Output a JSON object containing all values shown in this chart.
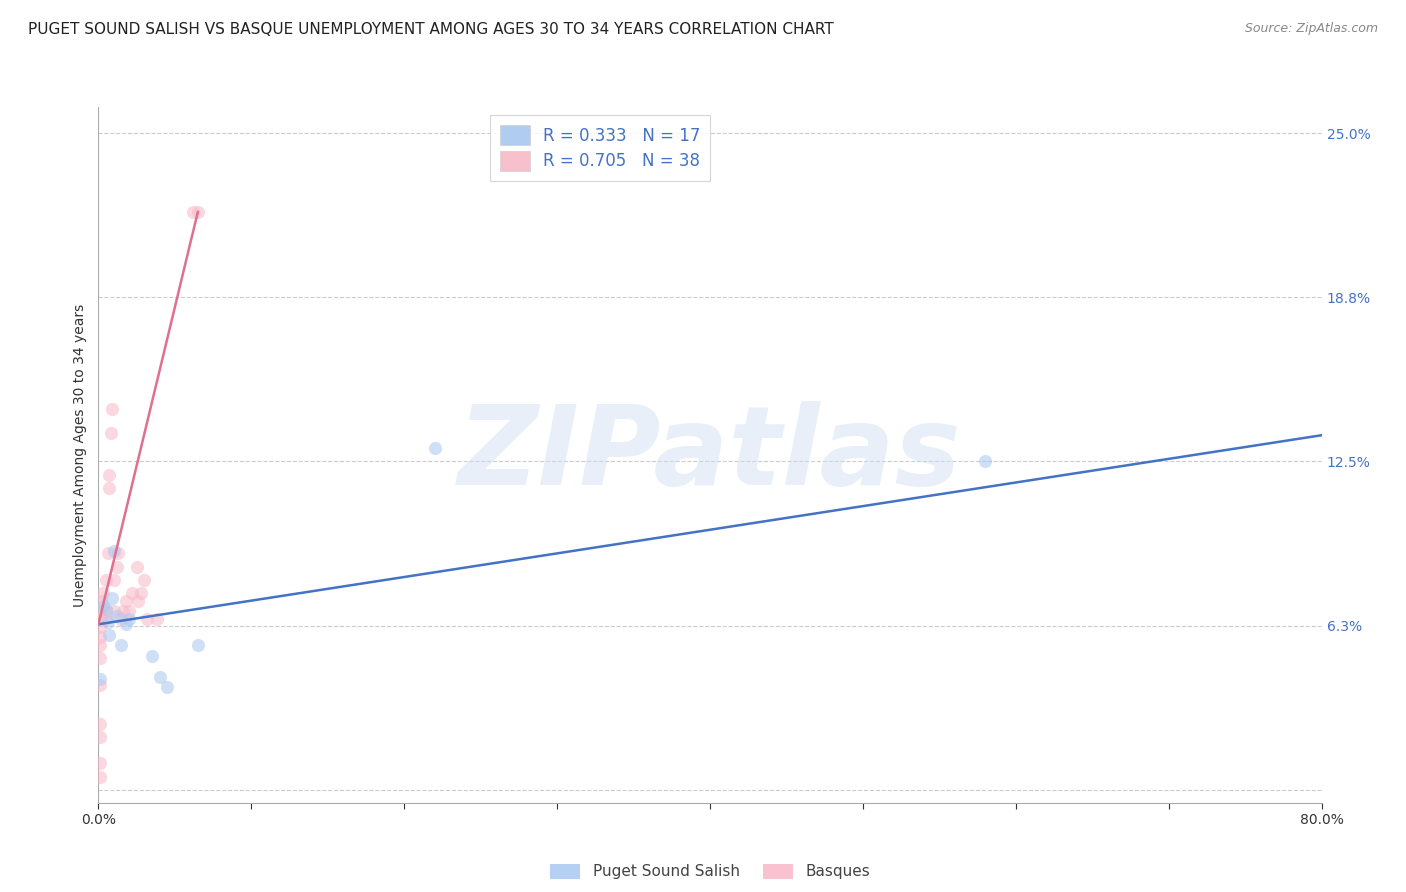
{
  "title": "PUGET SOUND SALISH VS BASQUE UNEMPLOYMENT AMONG AGES 30 TO 34 YEARS CORRELATION CHART",
  "source": "Source: ZipAtlas.com",
  "ylabel": "Unemployment Among Ages 30 to 34 years",
  "xlim": [
    0.0,
    0.8
  ],
  "ylim": [
    -0.005,
    0.26
  ],
  "yticks": [
    0.0,
    0.0625,
    0.125,
    0.1875,
    0.25
  ],
  "ytick_labels": [
    "",
    "6.3%",
    "12.5%",
    "18.8%",
    "25.0%"
  ],
  "watermark_text": "ZIPatlas",
  "legend_upper": [
    {
      "label": "R = 0.333   N = 17",
      "color": "#a8c8f0"
    },
    {
      "label": "R = 0.705   N = 38",
      "color": "#f8b8c8"
    }
  ],
  "legend_bottom": [
    {
      "label": "Puget Sound Salish",
      "color": "#a8c8f0"
    },
    {
      "label": "Basques",
      "color": "#f8b8c8"
    }
  ],
  "blue_scatter_x": [
    0.001,
    0.003,
    0.005,
    0.006,
    0.007,
    0.009,
    0.01,
    0.012,
    0.015,
    0.018,
    0.02,
    0.035,
    0.04,
    0.045,
    0.065,
    0.22,
    0.58
  ],
  "blue_scatter_y": [
    0.042,
    0.07,
    0.069,
    0.064,
    0.059,
    0.073,
    0.091,
    0.066,
    0.055,
    0.063,
    0.065,
    0.051,
    0.043,
    0.039,
    0.055,
    0.13,
    0.125
  ],
  "pink_scatter_x": [
    0.001,
    0.001,
    0.001,
    0.001,
    0.001,
    0.001,
    0.001,
    0.001,
    0.001,
    0.001,
    0.001,
    0.002,
    0.003,
    0.004,
    0.005,
    0.005,
    0.006,
    0.007,
    0.007,
    0.008,
    0.009,
    0.01,
    0.01,
    0.012,
    0.013,
    0.015,
    0.016,
    0.018,
    0.02,
    0.022,
    0.025,
    0.026,
    0.028,
    0.03,
    0.032,
    0.038,
    0.062,
    0.065
  ],
  "pink_scatter_y": [
    0.005,
    0.01,
    0.02,
    0.025,
    0.04,
    0.05,
    0.055,
    0.058,
    0.062,
    0.065,
    0.068,
    0.072,
    0.075,
    0.065,
    0.068,
    0.08,
    0.09,
    0.115,
    0.12,
    0.136,
    0.145,
    0.068,
    0.08,
    0.085,
    0.09,
    0.065,
    0.068,
    0.072,
    0.068,
    0.075,
    0.085,
    0.072,
    0.075,
    0.08,
    0.065,
    0.065,
    0.22,
    0.22
  ],
  "blue_line_x": [
    0.0,
    0.8
  ],
  "blue_line_y": [
    0.063,
    0.135
  ],
  "pink_line_x": [
    0.0,
    0.065
  ],
  "pink_line_y": [
    0.063,
    0.22
  ],
  "blue_scatter_color": "#a8c8f0",
  "pink_scatter_color": "#f8b8c8",
  "blue_line_color": "#4472c4",
  "pink_line_color": "#e07090",
  "background_color": "#ffffff",
  "grid_color": "#cccccc",
  "title_fontsize": 11,
  "source_fontsize": 9,
  "axis_label_fontsize": 10,
  "tick_fontsize": 10,
  "legend_fontsize": 12,
  "scatter_size": 90,
  "scatter_alpha": 0.55,
  "right_tick_color": "#4472c4"
}
